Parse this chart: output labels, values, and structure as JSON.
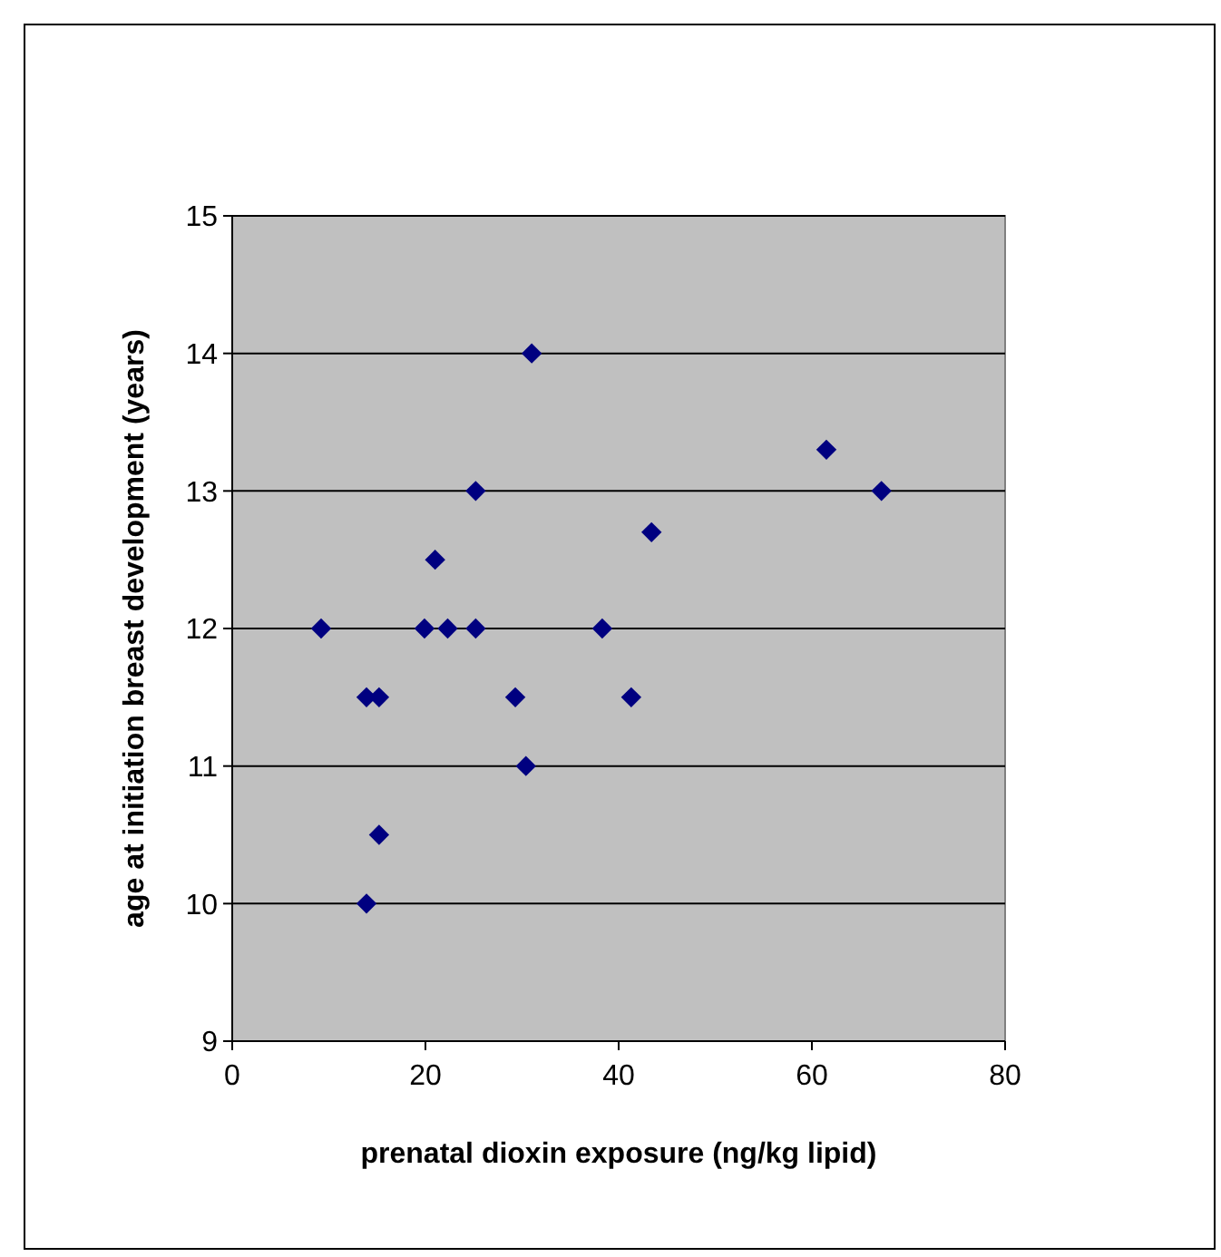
{
  "chart_data": {
    "type": "scatter",
    "xlabel": "prenatal dioxin exposure (ng/kg lipid)",
    "ylabel": "age at initiation breast development (years)",
    "x": [
      9.2,
      13.9,
      15.2,
      15.2,
      13.9,
      19.9,
      21.0,
      22.3,
      25.2,
      25.2,
      29.3,
      31.0,
      30.4,
      38.3,
      41.3,
      43.4,
      61.5,
      67.2
    ],
    "values": [
      12,
      11.5,
      11.5,
      10.5,
      10,
      12,
      12.5,
      12,
      12,
      13,
      11.5,
      14,
      11,
      12,
      11.5,
      12.7,
      13.3,
      13
    ],
    "color": "#000080",
    "marker": "diamond",
    "grid": "y",
    "xlim": [
      0,
      80
    ],
    "xticks": [
      0,
      20,
      40,
      60,
      80
    ],
    "ylim": [
      9,
      15
    ],
    "yticks": [
      9,
      10,
      11,
      12,
      13,
      14,
      15
    ]
  }
}
